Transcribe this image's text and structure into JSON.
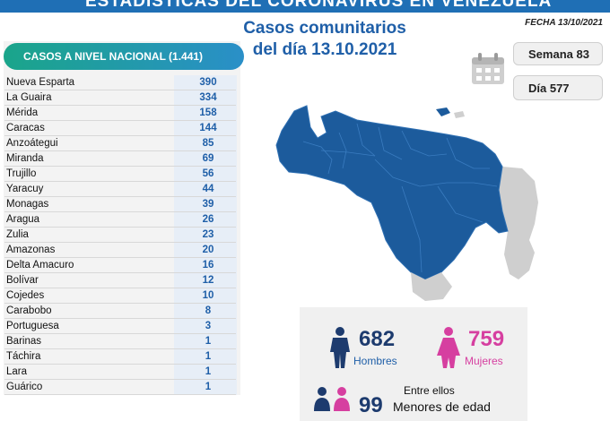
{
  "header": {
    "banner": "ESTADÍSTICAS DEL CORONAVIRUS EN VENEZUELA",
    "date_label": "FECHA 13/10/2021",
    "title_line1": "Casos comunitarios",
    "title_line2": "del día 13.10.2021"
  },
  "badges": {
    "week": "Semana 83",
    "day": "Día 577"
  },
  "chart_data": {
    "type": "table",
    "title": "CASOS A NIVEL NACIONAL (1.441)",
    "categories": [
      "Nueva Esparta",
      "La Guaira",
      "Mérida",
      "Caracas",
      "Anzoátegui",
      "Miranda",
      "Trujillo",
      "Yaracuy",
      "Monagas",
      "Aragua",
      "Zulia",
      "Amazonas",
      "Delta Amacuro",
      "Bolívar",
      "Cojedes",
      "Carabobo",
      "Portuguesa",
      "Barinas",
      "Táchira",
      "Lara",
      "Guárico"
    ],
    "values": [
      390,
      334,
      158,
      144,
      85,
      69,
      56,
      44,
      39,
      26,
      23,
      20,
      16,
      12,
      10,
      8,
      3,
      1,
      1,
      1,
      1
    ]
  },
  "stats": {
    "men_count": "682",
    "men_label": "Hombres",
    "women_count": "759",
    "women_label": "Mujeres",
    "minors_intro": "Entre ellos",
    "minors_count": "99",
    "minors_label": "Menores de edad"
  },
  "colors": {
    "blue": "#1f5fa8",
    "map_blue": "#1c5b9c",
    "map_gray": "#cfcfcf",
    "pink": "#d63fa0",
    "navy": "#1d3b6e"
  }
}
